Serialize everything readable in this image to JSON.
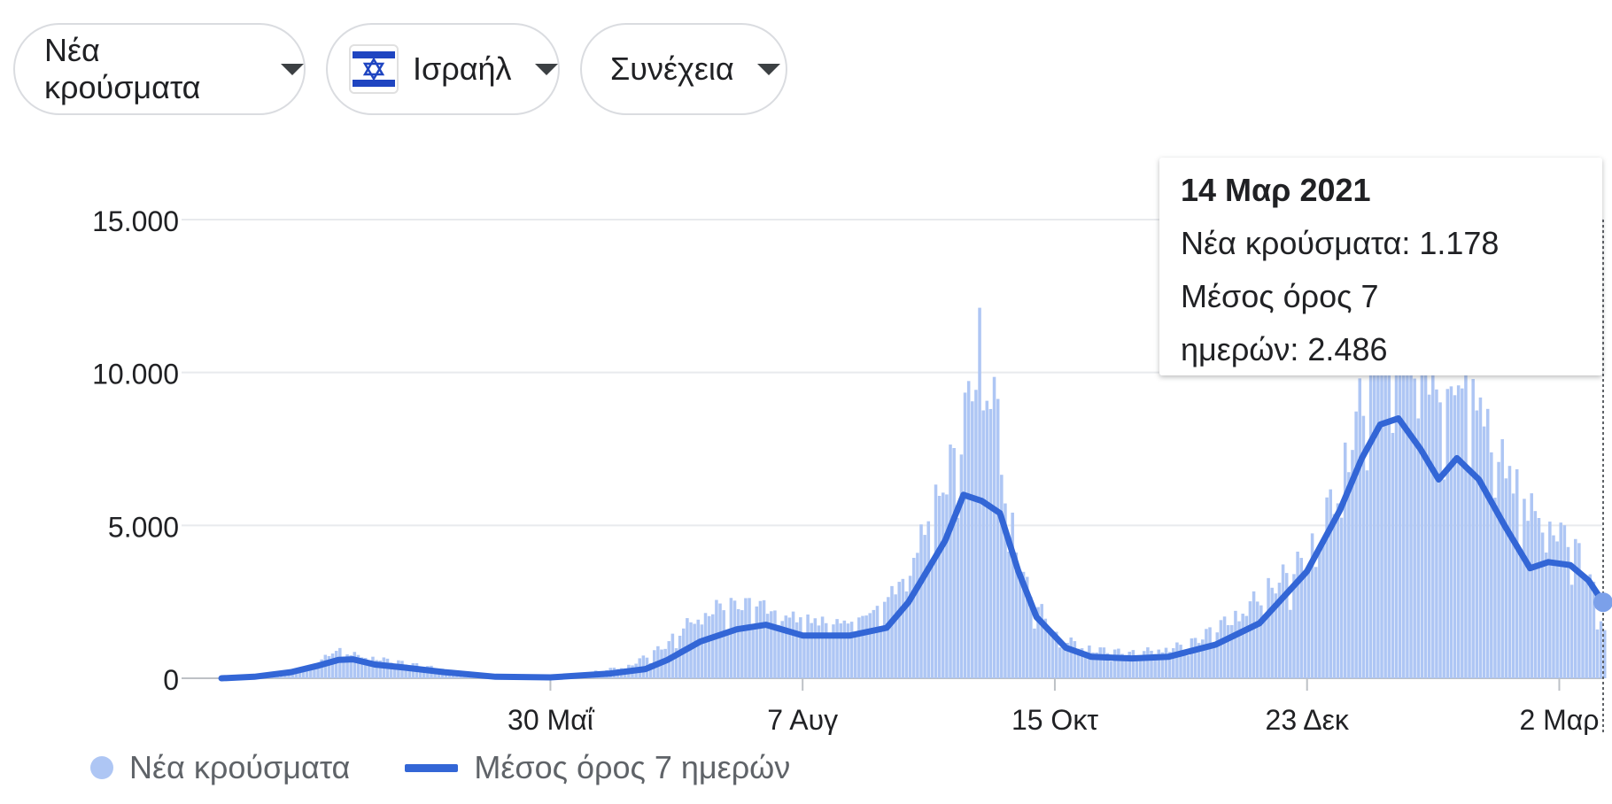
{
  "controls": {
    "metric": "Νέα κρούσματα",
    "country": "Ισραήλ",
    "scope": "Συνέχεια"
  },
  "tooltip": {
    "date": "14 Μαρ 2021",
    "new_cases": "Νέα κρούσματα: 1.178",
    "avg_line1": "Μέσος όρος 7",
    "avg_line2": "ημερών: 2.486"
  },
  "legend": {
    "bars": "Νέα κρούσματα",
    "line": "Μέσος όρος 7 ημερών"
  },
  "colors": {
    "bars": "#aec6f4",
    "line": "#3366d6",
    "grid": "#e8eaed",
    "axis": "#bdc1c6"
  },
  "chart_data": {
    "type": "bar",
    "x_start": "2020-03-01",
    "x_end": "2021-03-14",
    "ylim": [
      0,
      15000
    ],
    "yticks": [
      0,
      5000,
      10000,
      15000
    ],
    "ytick_labels": [
      "0",
      "5.000",
      "10.000",
      "15.000"
    ],
    "xticks": [
      {
        "date": "2020-05-30",
        "label": "30 Μαΐ"
      },
      {
        "date": "2020-08-07",
        "label": "7 Αυγ"
      },
      {
        "date": "2020-10-15",
        "label": "15 Οκτ"
      },
      {
        "date": "2020-12-23",
        "label": "23 Δεκ"
      },
      {
        "date": "2021-03-02",
        "label": "2 Μαρ"
      }
    ],
    "series": [
      {
        "name": "Νέα κρούσματα",
        "type": "bar",
        "points": [
          [
            "2020-03-01",
            0
          ],
          [
            "2020-03-15",
            50
          ],
          [
            "2020-03-25",
            300
          ],
          [
            "2020-04-01",
            700
          ],
          [
            "2020-04-05",
            600
          ],
          [
            "2020-04-15",
            450
          ],
          [
            "2020-04-25",
            300
          ],
          [
            "2020-05-05",
            150
          ],
          [
            "2020-05-15",
            40
          ],
          [
            "2020-05-30",
            20
          ],
          [
            "2020-06-10",
            150
          ],
          [
            "2020-06-20",
            300
          ],
          [
            "2020-06-30",
            800
          ],
          [
            "2020-07-07",
            1400
          ],
          [
            "2020-07-15",
            1800
          ],
          [
            "2020-07-25",
            1900
          ],
          [
            "2020-08-01",
            1600
          ],
          [
            "2020-08-07",
            1500
          ],
          [
            "2020-08-20",
            1400
          ],
          [
            "2020-08-28",
            1800
          ],
          [
            "2020-09-05",
            2800
          ],
          [
            "2020-09-10",
            4000
          ],
          [
            "2020-09-15",
            5000
          ],
          [
            "2020-09-20",
            6500
          ],
          [
            "2020-09-24",
            8500
          ],
          [
            "2020-09-28",
            7000
          ],
          [
            "2020-10-02",
            4000
          ],
          [
            "2020-10-07",
            2200
          ],
          [
            "2020-10-15",
            1000
          ],
          [
            "2020-10-25",
            700
          ],
          [
            "2020-11-05",
            600
          ],
          [
            "2020-11-20",
            800
          ],
          [
            "2020-12-01",
            1400
          ],
          [
            "2020-12-10",
            2000
          ],
          [
            "2020-12-23",
            3000
          ],
          [
            "2021-01-01",
            5000
          ],
          [
            "2021-01-08",
            7500
          ],
          [
            "2021-01-14",
            9000
          ],
          [
            "2021-01-20",
            8500
          ],
          [
            "2021-01-28",
            7000
          ],
          [
            "2021-02-05",
            7500
          ],
          [
            "2021-02-12",
            6000
          ],
          [
            "2021-02-20",
            4500
          ],
          [
            "2021-02-27",
            3800
          ],
          [
            "2021-03-05",
            3500
          ],
          [
            "2021-03-10",
            2500
          ],
          [
            "2021-03-14",
            1178
          ]
        ]
      },
      {
        "name": "Μέσος όρος 7 ημερών",
        "type": "line",
        "points": [
          [
            "2020-03-01",
            0
          ],
          [
            "2020-03-10",
            50
          ],
          [
            "2020-03-20",
            200
          ],
          [
            "2020-03-27",
            400
          ],
          [
            "2020-04-02",
            600
          ],
          [
            "2020-04-06",
            620
          ],
          [
            "2020-04-12",
            450
          ],
          [
            "2020-04-20",
            350
          ],
          [
            "2020-05-01",
            200
          ],
          [
            "2020-05-15",
            50
          ],
          [
            "2020-05-30",
            30
          ],
          [
            "2020-06-15",
            150
          ],
          [
            "2020-06-25",
            300
          ],
          [
            "2020-07-01",
            600
          ],
          [
            "2020-07-10",
            1200
          ],
          [
            "2020-07-20",
            1600
          ],
          [
            "2020-07-28",
            1750
          ],
          [
            "2020-08-07",
            1400
          ],
          [
            "2020-08-20",
            1400
          ],
          [
            "2020-08-30",
            1650
          ],
          [
            "2020-09-05",
            2500
          ],
          [
            "2020-09-10",
            3500
          ],
          [
            "2020-09-15",
            4500
          ],
          [
            "2020-09-20",
            6000
          ],
          [
            "2020-09-25",
            5800
          ],
          [
            "2020-09-30",
            5400
          ],
          [
            "2020-10-05",
            3500
          ],
          [
            "2020-10-10",
            2000
          ],
          [
            "2020-10-18",
            1000
          ],
          [
            "2020-10-25",
            700
          ],
          [
            "2020-11-05",
            650
          ],
          [
            "2020-11-15",
            700
          ],
          [
            "2020-11-28",
            1100
          ],
          [
            "2020-12-10",
            1800
          ],
          [
            "2020-12-23",
            3500
          ],
          [
            "2021-01-01",
            5500
          ],
          [
            "2021-01-07",
            7200
          ],
          [
            "2021-01-12",
            8300
          ],
          [
            "2021-01-17",
            8500
          ],
          [
            "2021-01-23",
            7500
          ],
          [
            "2021-01-28",
            6500
          ],
          [
            "2021-02-02",
            7200
          ],
          [
            "2021-02-08",
            6500
          ],
          [
            "2021-02-15",
            5000
          ],
          [
            "2021-02-22",
            3600
          ],
          [
            "2021-02-27",
            3800
          ],
          [
            "2021-03-05",
            3700
          ],
          [
            "2021-03-10",
            3200
          ],
          [
            "2021-03-14",
            2486
          ]
        ]
      }
    ]
  }
}
